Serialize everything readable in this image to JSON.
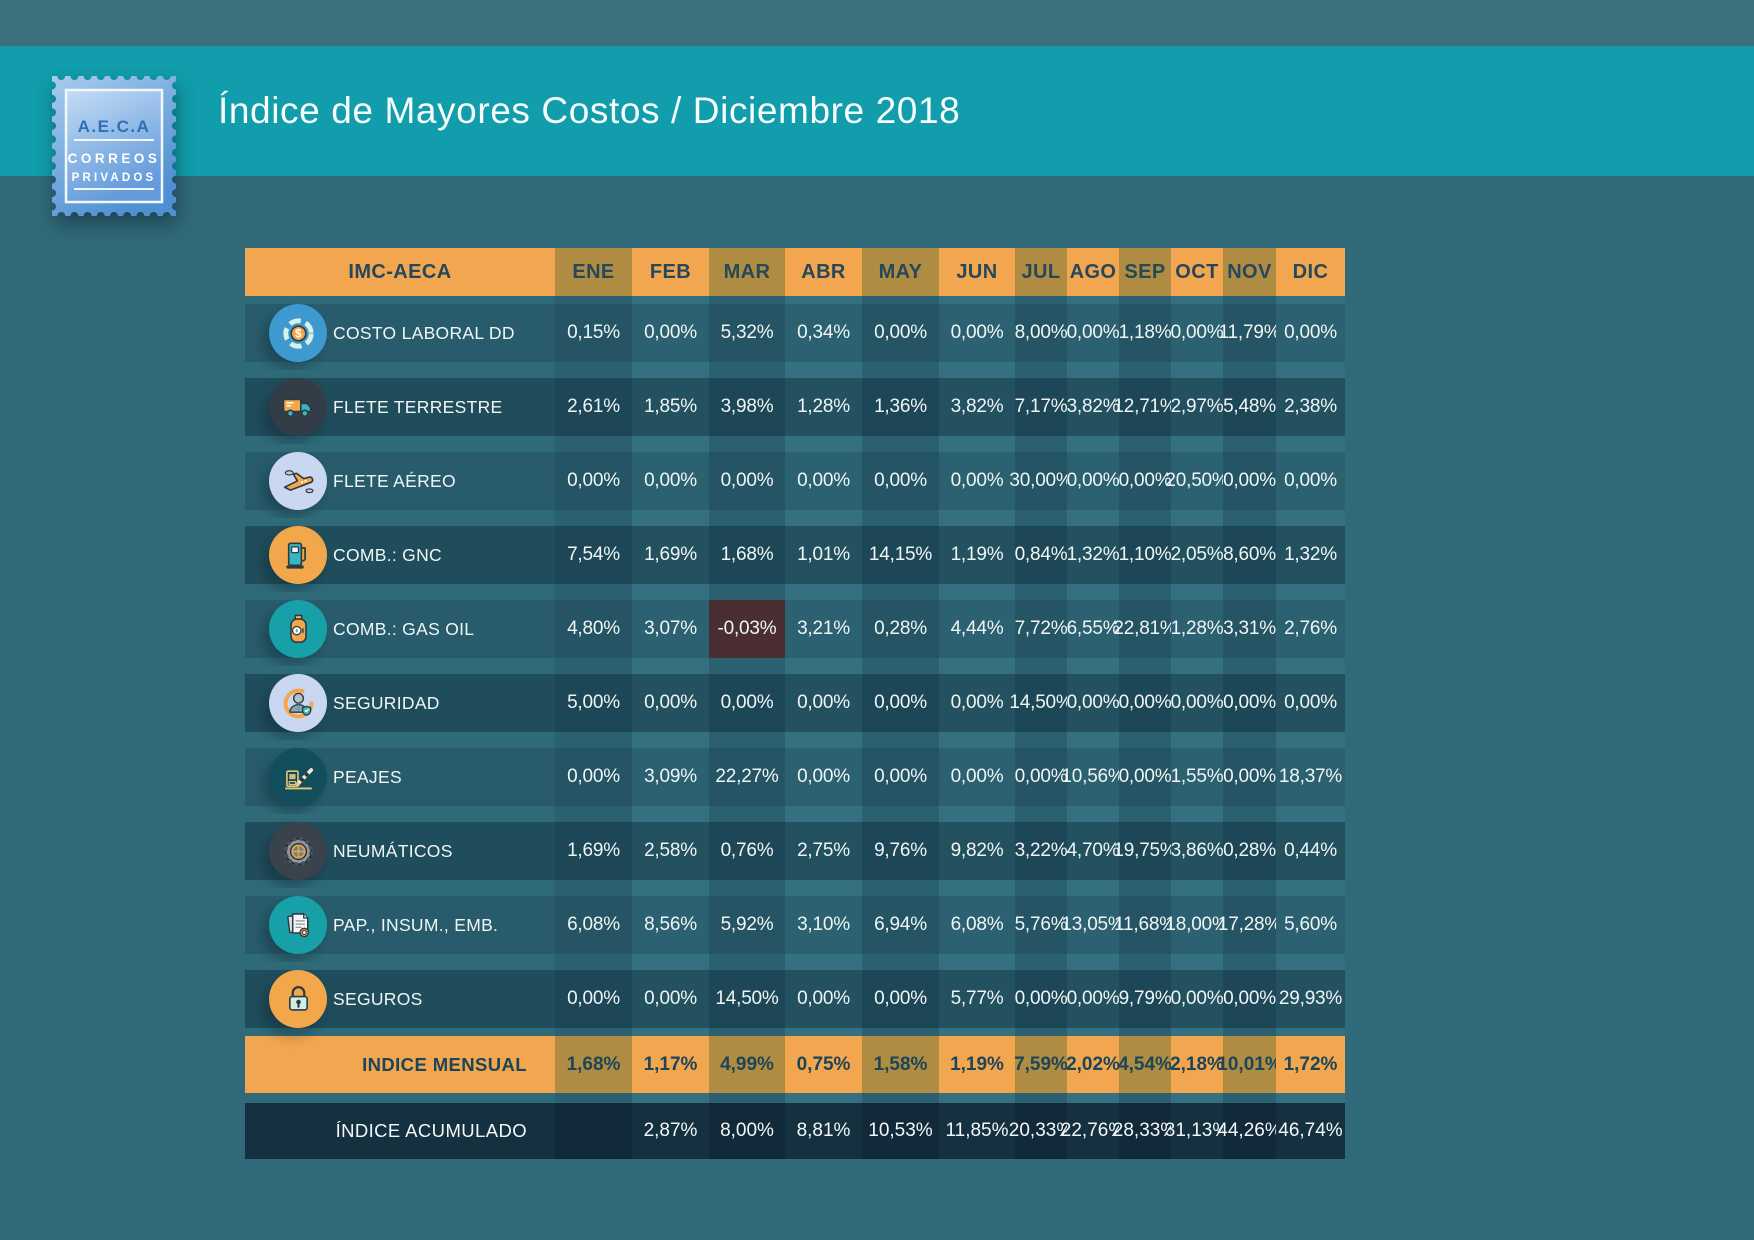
{
  "header": {
    "title": "Índice de Mayores Costos  / Diciembre 2018",
    "logo": {
      "acronym": "A.E.C.A",
      "line2": "CORREOS",
      "line3": "PRIVADOS"
    }
  },
  "colors": {
    "band_teal": "#119DAB",
    "page_background": "#30697A",
    "accent_orange": "#F1A64F",
    "accent_olive": "#AF8C42",
    "negative_cell": "#4A2E32",
    "accumulated_navy": "#15303F",
    "header_text": "#25485A",
    "value_text": "#EFF6F5"
  },
  "chart_data": {
    "type": "table",
    "title": "Índice de Mayores Costos / Diciembre 2018",
    "corner_label": "IMC-AECA",
    "units": "%",
    "columns": [
      "ENE",
      "FEB",
      "MAR",
      "ABR",
      "MAY",
      "JUN",
      "JUL",
      "AGO",
      "SEP",
      "OCT",
      "NOV",
      "DIC"
    ],
    "rows": [
      {
        "label": "COSTO LABORAL DD",
        "icon": {
          "name": "money-gauge-icon",
          "bg": "#3D99CF"
        },
        "values": [
          "0,15%",
          "0,00%",
          "5,32%",
          "0,34%",
          "0,00%",
          "0,00%",
          "8,00%",
          "0,00%",
          "1,18%",
          "0,00%",
          "11,79%",
          "0,00%"
        ]
      },
      {
        "label": "FLETE TERRESTRE",
        "icon": {
          "name": "truck-icon",
          "bg": "#333D47"
        },
        "values": [
          "2,61%",
          "1,85%",
          "3,98%",
          "1,28%",
          "1,36%",
          "3,82%",
          "7,17%",
          "3,82%",
          "12,71%",
          "2,97%",
          "5,48%",
          "2,38%"
        ]
      },
      {
        "label": "FLETE AÉREO",
        "icon": {
          "name": "airplane-icon",
          "bg": "#C9D8F0"
        },
        "values": [
          "0,00%",
          "0,00%",
          "0,00%",
          "0,00%",
          "0,00%",
          "0,00%",
          "30,00%",
          "0,00%",
          "0,00%",
          "20,50%",
          "0,00%",
          "0,00%"
        ]
      },
      {
        "label": "COMB.: GNC",
        "icon": {
          "name": "fuel-pump-icon",
          "bg": "#F2A74B"
        },
        "values": [
          "7,54%",
          "1,69%",
          "1,68%",
          "1,01%",
          "14,15%",
          "1,19%",
          "0,84%",
          "1,32%",
          "1,10%",
          "2,05%",
          "8,60%",
          "1,32%"
        ]
      },
      {
        "label": "COMB.: GAS OIL",
        "icon": {
          "name": "gas-cylinder-icon",
          "bg": "#17A0A8"
        },
        "values": [
          "4,80%",
          "3,07%",
          "-0,03%",
          "3,21%",
          "0,28%",
          "4,44%",
          "7,72%",
          "6,55%",
          "22,81%",
          "1,28%",
          "3,31%",
          "2,76%"
        ]
      },
      {
        "label": "SEGURIDAD",
        "icon": {
          "name": "security-guard-icon",
          "bg": "#C9D8F0"
        },
        "values": [
          "5,00%",
          "0,00%",
          "0,00%",
          "0,00%",
          "0,00%",
          "0,00%",
          "14,50%",
          "0,00%",
          "0,00%",
          "0,00%",
          "0,00%",
          "0,00%"
        ]
      },
      {
        "label": "PEAJES",
        "icon": {
          "name": "toll-barrier-icon",
          "bg": "#124E5C"
        },
        "values": [
          "0,00%",
          "3,09%",
          "22,27%",
          "0,00%",
          "0,00%",
          "0,00%",
          "0,00%",
          "10,56%",
          "0,00%",
          "1,55%",
          "0,00%",
          "18,37%"
        ]
      },
      {
        "label": "NEUMÁTICOS",
        "icon": {
          "name": "tire-icon",
          "bg": "#3A434C"
        },
        "values": [
          "1,69%",
          "2,58%",
          "0,76%",
          "2,75%",
          "9,76%",
          "9,82%",
          "3,22%",
          "4,70%",
          "19,75%",
          "3,86%",
          "0,28%",
          "0,44%"
        ]
      },
      {
        "label": "PAP., INSUM., EMB.",
        "icon": {
          "name": "documents-icon",
          "bg": "#17A0A8"
        },
        "values": [
          "6,08%",
          "8,56%",
          "5,92%",
          "3,10%",
          "6,94%",
          "6,08%",
          "5,76%",
          "13,05%",
          "11,68%",
          "18,00%",
          "17,28%",
          "5,60%"
        ]
      },
      {
        "label": "SEGUROS",
        "icon": {
          "name": "padlock-icon",
          "bg": "#F2A74B"
        },
        "values": [
          "0,00%",
          "0,00%",
          "14,50%",
          "0,00%",
          "0,00%",
          "5,77%",
          "0,00%",
          "0,00%",
          "9,79%",
          "0,00%",
          "0,00%",
          "29,93%"
        ]
      }
    ],
    "summary_rows": [
      {
        "label": "INDICE MENSUAL",
        "style": "orange",
        "values": [
          "1,68%",
          "1,17%",
          "4,99%",
          "0,75%",
          "1,58%",
          "1,19%",
          "7,59%",
          "2,02%",
          "4,54%",
          "2,18%",
          "10,01%",
          "1,72%"
        ]
      },
      {
        "label": "ÍNDICE ACUMULADO",
        "style": "navy",
        "values": [
          "",
          "2,87%",
          "8,00%",
          "8,81%",
          "10,53%",
          "11,85%",
          "20,33%",
          "22,76%",
          "28,33%",
          "31,13%",
          "44,26%",
          "46,74%"
        ]
      }
    ],
    "negative_cell": {
      "row": "COMB.: GAS OIL",
      "column": "MAR",
      "value": "-0,03%"
    }
  }
}
